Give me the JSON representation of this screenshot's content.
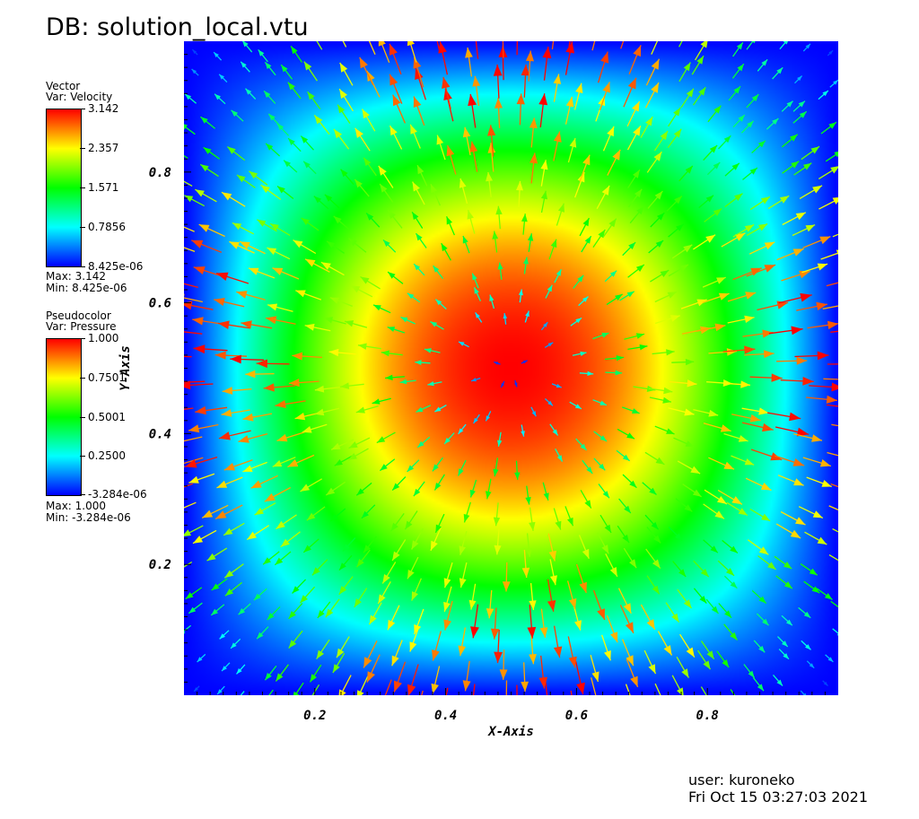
{
  "db_title": "DB: solution_local.vtu",
  "legends": {
    "vector": {
      "heading": "Vector",
      "var": "Var: Velocity",
      "ticks": [
        "3.142",
        "2.357",
        "1.571",
        "0.7856",
        "8.425e-06"
      ],
      "max_text": "Max:  3.142",
      "min_text": "Min:  8.425e-06"
    },
    "pseudocolor": {
      "heading": "Pseudocolor",
      "var": "Var: Pressure",
      "ticks": [
        "1.000",
        "0.7501",
        "0.5001",
        "0.2500",
        "-3.284e-06"
      ],
      "max_text": "Max:  1.000",
      "min_text": "Min: -3.284e-06"
    }
  },
  "user_line": "user: kuroneko",
  "date_line": "Fri Oct 15 03:27:03 2021",
  "colors": {
    "colormap": [
      "#0000ff",
      "#00ffff",
      "#00ff00",
      "#ffff00",
      "#ff0000"
    ]
  },
  "chart_data": {
    "type": "heatmap",
    "subtype": "pseudocolor field with velocity vector glyphs",
    "field": "Pressure",
    "vector_field": "Velocity",
    "pressure_function": "sin(pi*x)*sin(pi*y)",
    "pressure_range": [
      -3.284e-06,
      1.0
    ],
    "velocity_magnitude_range": [
      8.425e-06,
      3.142
    ],
    "vector_direction": "radially outward from center (0.5, 0.5)",
    "xlabel": "X-Axis",
    "ylabel": "Y-Axis",
    "xlim": [
      0,
      1
    ],
    "ylim": [
      0,
      1
    ],
    "xticks": [
      0.2,
      0.4,
      0.6,
      0.8
    ],
    "yticks": [
      0.2,
      0.4,
      0.6,
      0.8
    ],
    "xtick_labels": [
      "0.2",
      "0.4",
      "0.6",
      "0.8"
    ],
    "ytick_labels": [
      "0.2",
      "0.4",
      "0.6",
      "0.8"
    ],
    "sample_vectors": [
      {
        "x": 0.5,
        "y": 0.98,
        "magnitude": 3.1
      },
      {
        "x": 0.5,
        "y": 0.02,
        "magnitude": 3.1
      },
      {
        "x": 0.02,
        "y": 0.5,
        "magnitude": 3.1
      },
      {
        "x": 0.98,
        "y": 0.5,
        "magnitude": 3.1
      },
      {
        "x": 0.5,
        "y": 0.5,
        "magnitude": 0.0
      },
      {
        "x": 0.25,
        "y": 0.75,
        "magnitude": 2.2
      },
      {
        "x": 0.75,
        "y": 0.25,
        "magnitude": 2.2
      },
      {
        "x": 0.1,
        "y": 0.1,
        "magnitude": 0.9
      },
      {
        "x": 0.9,
        "y": 0.9,
        "magnitude": 0.9
      }
    ]
  }
}
